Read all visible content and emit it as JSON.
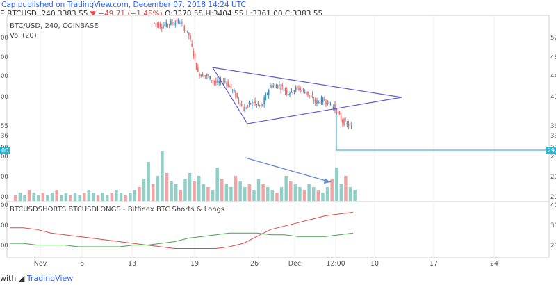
{
  "header": {
    "publisher_line": "Cap published on TradingView.com, December 07, 2018 14:24 UTC",
    "ohlc_prefix": "E:BTCUSD, 240",
    "last": "3383.55",
    "change": "−49.71 (−1.45%)",
    "open": "3378.55",
    "high": "3404.55",
    "low": "3361.00",
    "close": "3383.55"
  },
  "pane_labels": {
    "symbol": "BTC/USD, 240, COINBASE",
    "volume": "Vol (20)",
    "indicator": "BTCUSDSHORTS BTCUSDLONGS - Bitfinex BTC Shorts & Longs"
  },
  "footer": {
    "prefix": "with",
    "brand": "TradingView"
  },
  "colors": {
    "up": "#3f8fbf",
    "down": "#e76d6d",
    "trendline": "#5b5bd6",
    "level": "#49b5d9",
    "shorts": "#e04848",
    "longs": "#4aa04a",
    "vol_up": "#8fd0c8",
    "vol_down": "#f2a3a3"
  },
  "left_scale_fragments": [
    "00",
    "00",
    "00",
    "00",
    "55",
    "36",
    "00",
    "00",
    "00",
    "00",
    "00",
    "00",
    "00"
  ],
  "right_scale_fragments": [
    "52",
    "48",
    "44",
    "40",
    "36",
    "33",
    "29",
    "20",
    "20",
    "20",
    "40",
    "30",
    "20"
  ],
  "chart_data": [
    {
      "type": "line",
      "title": "BTC/USD, 240, COINBASE",
      "x_ticks": [
        "Nov",
        "6",
        "13",
        "19",
        "26",
        "Dec",
        "12:00",
        "10",
        "17",
        "24"
      ],
      "price_path": [
        {
          "x": "Nov 15",
          "price": 5560
        },
        {
          "x": "Nov 16",
          "price": 5500
        },
        {
          "x": "Nov 17",
          "price": 5560
        },
        {
          "x": "Nov 18",
          "price": 5580
        },
        {
          "x": "Nov 19",
          "price": 5300
        },
        {
          "x": "Nov 20",
          "price": 4500
        },
        {
          "x": "Nov 21",
          "price": 4450
        },
        {
          "x": "Nov 22",
          "price": 4300
        },
        {
          "x": "Nov 23",
          "price": 4350
        },
        {
          "x": "Nov 24",
          "price": 4100
        },
        {
          "x": "Nov 25",
          "price": 3750
        },
        {
          "x": "Nov 26",
          "price": 3900
        },
        {
          "x": "Nov 27",
          "price": 3800
        },
        {
          "x": "Nov 28",
          "price": 4250
        },
        {
          "x": "Nov 29",
          "price": 4250
        },
        {
          "x": "Nov 30",
          "price": 4100
        },
        {
          "x": "Dec 1",
          "price": 4200
        },
        {
          "x": "Dec 2",
          "price": 4100
        },
        {
          "x": "Dec 3",
          "price": 3900
        },
        {
          "x": "Dec 4",
          "price": 3950
        },
        {
          "x": "Dec 5",
          "price": 3800
        },
        {
          "x": "Dec 6",
          "price": 3500
        },
        {
          "x": "Dec 7",
          "price": 3383.55
        }
      ],
      "volume": [
        2,
        3,
        2,
        4,
        3,
        2,
        3,
        2,
        3,
        4,
        2,
        3,
        2,
        3,
        2,
        3,
        4,
        3,
        2,
        3,
        2,
        3,
        4,
        3,
        2,
        3,
        4,
        5,
        8,
        14,
        6,
        9,
        18,
        10,
        7,
        6,
        4,
        8,
        10,
        7,
        9,
        6,
        5,
        4,
        12,
        8,
        6,
        5,
        9,
        7,
        5,
        6,
        4,
        8,
        6,
        5,
        4,
        3,
        5,
        9,
        7,
        6,
        5,
        4,
        6,
        5,
        4,
        3,
        5,
        8,
        12,
        6,
        9,
        5,
        4
      ],
      "shorts_longs": {
        "series": [
          {
            "name": "BTCUSDSHORTS",
            "values": [
              33,
              33,
              32,
              30,
              29,
              28,
              27,
              26,
              25,
              24,
              23,
              22,
              21,
              21,
              21,
              21,
              22,
              24,
              28,
              32,
              34,
              36,
              38,
              40,
              41,
              42
            ]
          },
          {
            "name": "BTCUSDLONGS",
            "values": [
              24,
              24,
              23,
              23,
              23,
              22,
              22,
              22,
              22,
              23,
              23,
              24,
              25,
              27,
              28,
              29,
              30,
              30,
              30,
              29,
              29,
              28,
              28,
              28,
              29,
              30
            ]
          }
        ]
      },
      "annotations": [
        "symmetrical triangle",
        "breakdown level",
        "declining volume arrow"
      ]
    }
  ]
}
